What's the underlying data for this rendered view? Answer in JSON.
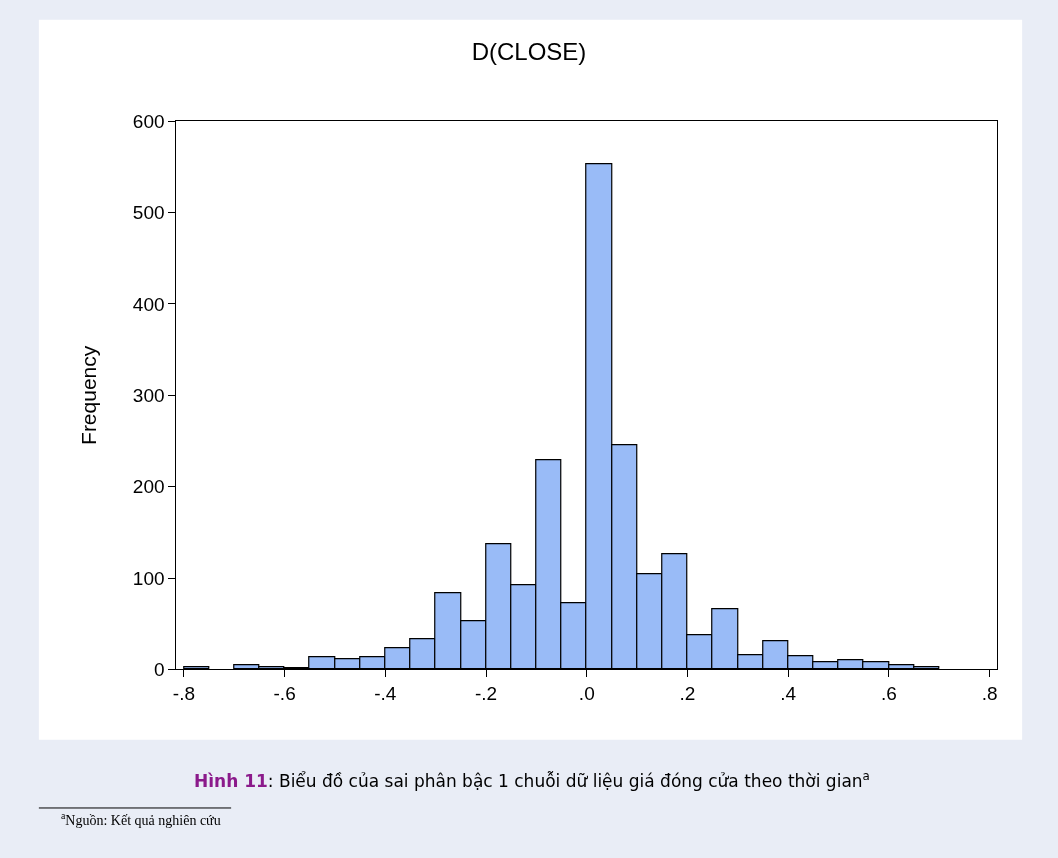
{
  "chart_data": {
    "type": "histogram",
    "title": "D(CLOSE)",
    "ylabel": "Frequency",
    "bins": [
      -0.8,
      -0.75,
      -0.7,
      -0.65,
      -0.6,
      -0.55,
      -0.5,
      -0.45,
      -0.4,
      -0.35,
      -0.3,
      -0.25,
      -0.2,
      -0.15,
      -0.1,
      -0.05,
      0,
      0.05,
      0.1,
      0.15,
      0.2,
      0.25,
      0.3,
      0.35,
      0.4,
      0.45,
      0.5,
      0.55,
      0.6,
      0.65,
      0.7,
      0.75,
      0.8
    ],
    "values": [
      3,
      0,
      5,
      3,
      1,
      13,
      11,
      13,
      23,
      33,
      83,
      53,
      137,
      92,
      229,
      73,
      553,
      245,
      104,
      126,
      37,
      66,
      16,
      31,
      15,
      8,
      10,
      8,
      5,
      3,
      0,
      0
    ],
    "color": "#99bbf7",
    "xlim": [
      -0.815,
      0.815
    ],
    "xticks": [
      {
        "value": -0.8,
        "label": "-.8"
      },
      {
        "value": -0.6,
        "label": "-.6"
      },
      {
        "value": -0.4,
        "label": "-.4"
      },
      {
        "value": -0.2,
        "label": "-.2"
      },
      {
        "value": 0,
        "label": ".0"
      },
      {
        "value": 0.2,
        "label": ".2"
      },
      {
        "value": 0.4,
        "label": ".4"
      },
      {
        "value": 0.6,
        "label": ".6"
      },
      {
        "value": 0.8,
        "label": ".8"
      }
    ],
    "ylim": [
      0,
      600
    ],
    "yticks": [
      0,
      100,
      200,
      300,
      400,
      500,
      600
    ],
    "annotations": [
      "Hình 11: Biểu đồ của sai phân bậc 1 chuỗi dữ liệu giá đóng cửa theo thời gian$^{a}$",
      "$^{a}$Nguồn: Kết quả nghiên cứu"
    ]
  }
}
